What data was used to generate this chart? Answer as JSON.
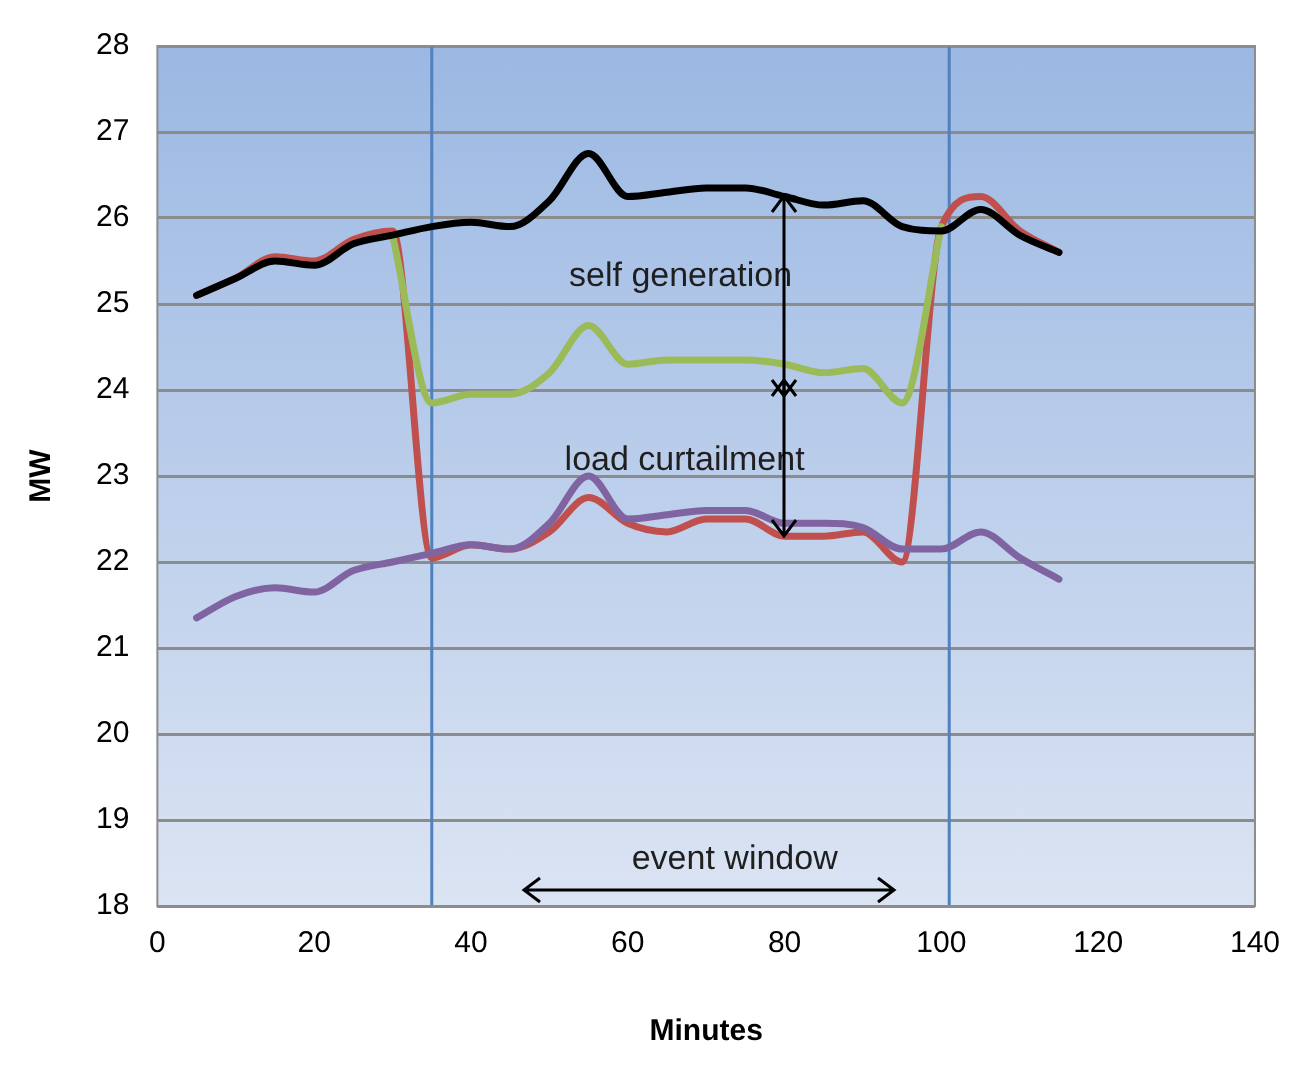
{
  "chart_data": {
    "type": "line",
    "xlabel": "Minutes",
    "ylabel": "MW",
    "x": [
      5,
      10,
      15,
      20,
      25,
      30,
      35,
      40,
      45,
      50,
      55,
      60,
      65,
      70,
      75,
      80,
      85,
      90,
      95,
      100,
      105,
      110,
      115
    ],
    "series": [
      {
        "color": "#000000",
        "values": [
          25.1,
          25.3,
          25.5,
          25.45,
          25.7,
          25.8,
          25.9,
          25.95,
          25.9,
          26.2,
          26.75,
          26.25,
          26.3,
          26.35,
          26.35,
          26.25,
          26.15,
          26.2,
          25.9,
          25.85,
          26.1,
          25.8,
          25.6
        ]
      },
      {
        "color": "#9bbb59",
        "values": [
          null,
          null,
          null,
          null,
          null,
          25.8,
          23.85,
          23.95,
          23.95,
          24.2,
          24.75,
          24.3,
          24.35,
          24.35,
          24.35,
          24.3,
          24.2,
          24.25,
          23.85,
          25.9,
          null,
          null,
          null
        ]
      },
      {
        "color": "#8064a2",
        "values": [
          21.35,
          21.6,
          21.7,
          21.65,
          21.9,
          22.0,
          22.1,
          22.2,
          22.15,
          22.45,
          23.0,
          22.5,
          22.55,
          22.6,
          22.6,
          22.45,
          22.45,
          22.4,
          22.15,
          22.15,
          22.35,
          22.05,
          21.8
        ]
      },
      {
        "color": "#c0504d",
        "values": [
          25.1,
          25.3,
          25.55,
          25.5,
          25.75,
          25.85,
          22.05,
          22.2,
          22.15,
          22.35,
          22.75,
          22.45,
          22.35,
          22.5,
          22.5,
          22.3,
          22.3,
          22.35,
          22.0,
          25.9,
          26.25,
          25.85,
          25.6
        ]
      }
    ],
    "xlim": [
      0,
      140
    ],
    "xticks": [
      0,
      20,
      40,
      60,
      80,
      100,
      120,
      140
    ],
    "ylim": [
      18,
      28
    ],
    "yticks": [
      18,
      19,
      20,
      21,
      22,
      23,
      24,
      25,
      26,
      27,
      28
    ],
    "grid": "y",
    "legend": false,
    "marker": "none",
    "line_style": "solid",
    "ref_lines": [
      {
        "axis": "x",
        "value": 35,
        "color": "#4f81bd"
      },
      {
        "axis": "x",
        "value": 101,
        "color": "#4f81bd"
      }
    ],
    "annotations": [
      {
        "text": "self generation",
        "x": 80,
        "y": 26.25
      },
      {
        "text": "load curtailment",
        "x": 80,
        "y": 22.3
      },
      "event window"
    ]
  }
}
